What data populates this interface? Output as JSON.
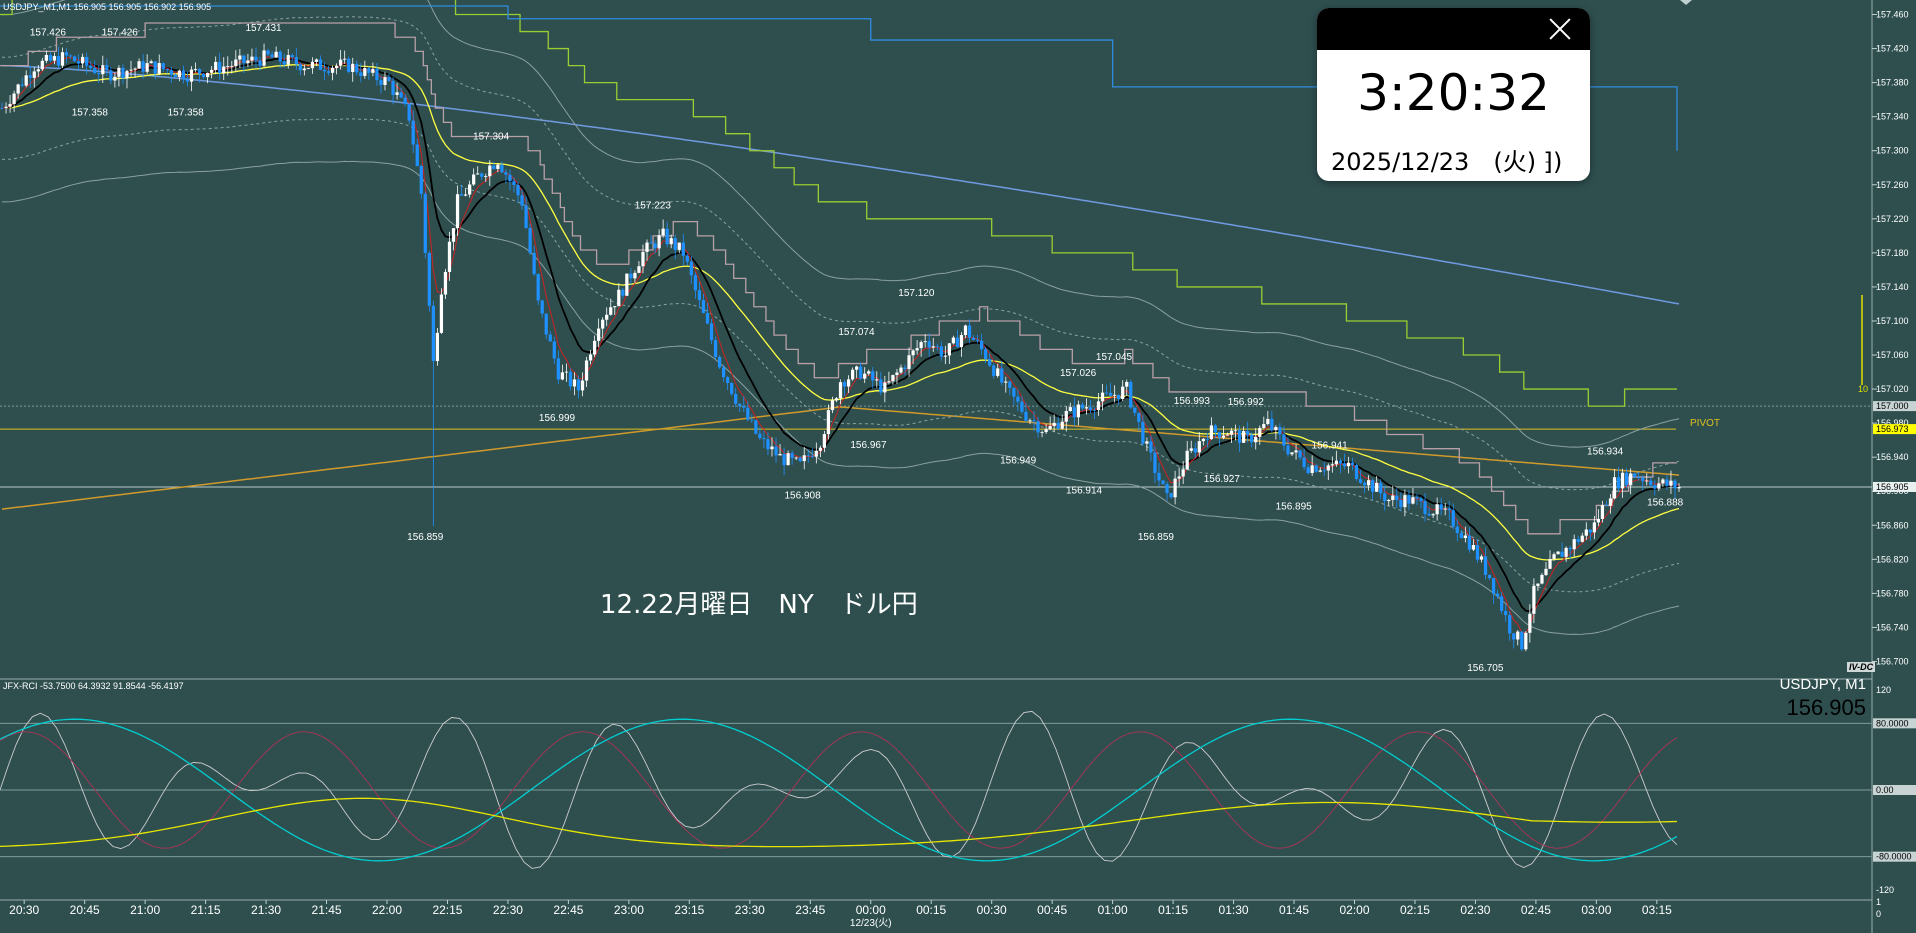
{
  "header": {
    "symbol_info": "USDJPY_M1,M1  156.905 156.905 156.902 156.905"
  },
  "clock": {
    "time": "3:20:32",
    "date": "2025/12/23　(火) ⁆)"
  },
  "annotation": "12.22月曜日　NY　ドル円",
  "rci_panel": {
    "header": "JFX-RCI -53.7500 64.3932 91.8544 -56.4197",
    "symbol": "USDJPY, M1",
    "price": "156.905"
  },
  "brand": "IV-DC",
  "pivot_label": "PIVOT",
  "colors": {
    "background": "#2f4f4f",
    "candle_up": "#ffffff",
    "candle_down": "#1e90ff",
    "ma_black": "#000000",
    "ma_red": "#cc2222",
    "ma_yellow": "#ffff40",
    "trail_green": "#9acd32",
    "trail_blue": "#2f8ce0",
    "ma_long": "#6f9ae0",
    "pivot": "#e0c020",
    "rci_short": "#cccccc",
    "rci_mid": "#00ced1",
    "rci_long": "#e6e600",
    "rci_red": "#aa3355"
  },
  "price_axis": {
    "ticks": [
      "157.460",
      "157.420",
      "157.380",
      "157.340",
      "157.300",
      "157.260",
      "157.220",
      "157.180",
      "157.140",
      "157.100",
      "157.060",
      "157.020",
      "156.980",
      "156.940",
      "156.900",
      "156.860",
      "156.820",
      "156.780",
      "156.740",
      "156.700"
    ],
    "current_price": "156.905",
    "level_157000": "157.000",
    "pivot_value": "156.973",
    "side_mark": "10"
  },
  "rci_axis": {
    "ticks": [
      "120",
      "80.0000",
      "0.00",
      "-80.0000",
      "-120"
    ],
    "bottom_ticks": [
      "1",
      "0"
    ]
  },
  "time_axis": {
    "labels": [
      "20:30",
      "20:45",
      "21:00",
      "21:15",
      "21:30",
      "21:45",
      "22:00",
      "22:15",
      "22:30",
      "22:45",
      "23:00",
      "23:15",
      "23:30",
      "23:45",
      "00:00",
      "00:15",
      "00:30",
      "00:45",
      "01:00",
      "01:15",
      "01:30",
      "01:45",
      "02:00",
      "02:15",
      "02:30",
      "02:45",
      "03:00",
      "03:15"
    ],
    "date_label": "12/23(火)"
  },
  "price_labels": [
    {
      "text": "157.426",
      "value": 157.426,
      "bar": 8,
      "pos": "above"
    },
    {
      "text": "157.426",
      "value": 157.426,
      "bar": 20,
      "pos": "above"
    },
    {
      "text": "157.431",
      "value": 157.431,
      "bar": 44,
      "pos": "above"
    },
    {
      "text": "157.358",
      "value": 157.358,
      "bar": 15,
      "pos": "below"
    },
    {
      "text": "157.358",
      "value": 157.358,
      "bar": 31,
      "pos": "below"
    },
    {
      "text": "157.304",
      "value": 157.304,
      "bar": 82,
      "pos": "above"
    },
    {
      "text": "156.859",
      "value": 156.859,
      "bar": 71,
      "pos": "below"
    },
    {
      "text": "156.999",
      "value": 156.999,
      "bar": 93,
      "pos": "below"
    },
    {
      "text": "157.223",
      "value": 157.223,
      "bar": 109,
      "pos": "above"
    },
    {
      "text": "156.908",
      "value": 156.908,
      "bar": 134,
      "pos": "below"
    },
    {
      "text": "157.074",
      "value": 157.074,
      "bar": 143,
      "pos": "above"
    },
    {
      "text": "156.967",
      "value": 156.967,
      "bar": 145,
      "pos": "below"
    },
    {
      "text": "157.120",
      "value": 157.12,
      "bar": 153,
      "pos": "above"
    },
    {
      "text": "157.026",
      "value": 157.026,
      "bar": 180,
      "pos": "above"
    },
    {
      "text": "156.949",
      "value": 156.949,
      "bar": 170,
      "pos": "below"
    },
    {
      "text": "157.045",
      "value": 157.045,
      "bar": 186,
      "pos": "above"
    },
    {
      "text": "156.914",
      "value": 156.914,
      "bar": 181,
      "pos": "below"
    },
    {
      "text": "156.993",
      "value": 156.993,
      "bar": 199,
      "pos": "above"
    },
    {
      "text": "156.992",
      "value": 156.992,
      "bar": 208,
      "pos": "above"
    },
    {
      "text": "156.859",
      "value": 156.859,
      "bar": 193,
      "pos": "below"
    },
    {
      "text": "156.927",
      "value": 156.927,
      "bar": 204,
      "pos": "below"
    },
    {
      "text": "156.941",
      "value": 156.941,
      "bar": 222,
      "pos": "above"
    },
    {
      "text": "156.895",
      "value": 156.895,
      "bar": 216,
      "pos": "below"
    },
    {
      "text": "156.705",
      "value": 156.705,
      "bar": 248,
      "pos": "below"
    },
    {
      "text": "156.934",
      "value": 156.934,
      "bar": 268,
      "pos": "above"
    },
    {
      "text": "156.888",
      "value": 156.888,
      "bar": 274,
      "pos": "right"
    }
  ],
  "chart_data": {
    "type": "candlestick",
    "title": "USDJPY_M1,M1",
    "timeframe": "M1",
    "x_start": "20:24",
    "x_end": "03:20",
    "ylim": [
      156.69,
      157.47
    ],
    "price_anchor_points": [
      [
        "20:24",
        157.35
      ],
      [
        "20:32",
        157.4
      ],
      [
        "20:40",
        157.41
      ],
      [
        "20:50",
        157.39
      ],
      [
        "21:00",
        157.4
      ],
      [
        "21:10",
        157.39
      ],
      [
        "21:20",
        157.4
      ],
      [
        "21:30",
        157.41
      ],
      [
        "21:40",
        157.4
      ],
      [
        "21:50",
        157.4
      ],
      [
        "22:00",
        157.38
      ],
      [
        "22:05",
        157.34
      ],
      [
        "22:08",
        157.25
      ],
      [
        "22:11",
        157.05
      ],
      [
        "22:13",
        157.14
      ],
      [
        "22:17",
        157.24
      ],
      [
        "22:22",
        157.27
      ],
      [
        "22:27",
        157.29
      ],
      [
        "22:33",
        157.24
      ],
      [
        "22:37",
        157.12
      ],
      [
        "22:42",
        157.04
      ],
      [
        "22:47",
        157.02
      ],
      [
        "22:52",
        157.1
      ],
      [
        "22:57",
        157.13
      ],
      [
        "23:03",
        157.18
      ],
      [
        "23:08",
        157.2
      ],
      [
        "23:13",
        157.18
      ],
      [
        "23:17",
        157.12
      ],
      [
        "23:22",
        157.05
      ],
      [
        "23:27",
        157.0
      ],
      [
        "23:32",
        156.96
      ],
      [
        "23:37",
        156.94
      ],
      [
        "23:42",
        156.93
      ],
      [
        "23:47",
        156.96
      ],
      [
        "23:52",
        157.03
      ],
      [
        "23:57",
        157.04
      ],
      [
        "00:03",
        157.02
      ],
      [
        "00:08",
        157.05
      ],
      [
        "00:13",
        157.08
      ],
      [
        "00:18",
        157.06
      ],
      [
        "00:23",
        157.09
      ],
      [
        "00:28",
        157.06
      ],
      [
        "00:33",
        157.02
      ],
      [
        "00:38",
        156.99
      ],
      [
        "00:43",
        156.97
      ],
      [
        "00:48",
        156.99
      ],
      [
        "00:53",
        157.0
      ],
      [
        "00:58",
        157.01
      ],
      [
        "01:03",
        157.02
      ],
      [
        "01:08",
        156.95
      ],
      [
        "01:13",
        156.89
      ],
      [
        "01:18",
        156.94
      ],
      [
        "01:23",
        156.97
      ],
      [
        "01:28",
        156.97
      ],
      [
        "01:33",
        156.96
      ],
      [
        "01:38",
        156.98
      ],
      [
        "01:43",
        156.95
      ],
      [
        "01:48",
        156.93
      ],
      [
        "01:53",
        156.93
      ],
      [
        "01:58",
        156.93
      ],
      [
        "02:03",
        156.91
      ],
      [
        "02:08",
        156.89
      ],
      [
        "02:13",
        156.89
      ],
      [
        "02:18",
        156.88
      ],
      [
        "02:23",
        156.87
      ],
      [
        "02:28",
        156.84
      ],
      [
        "02:33",
        156.8
      ],
      [
        "02:38",
        156.74
      ],
      [
        "02:41",
        156.72
      ],
      [
        "02:44",
        156.78
      ],
      [
        "02:49",
        156.82
      ],
      [
        "02:54",
        156.84
      ],
      [
        "02:59",
        156.86
      ],
      [
        "03:04",
        156.91
      ],
      [
        "03:09",
        156.92
      ],
      [
        "03:14",
        156.91
      ],
      [
        "03:20",
        156.905
      ]
    ],
    "lines": {
      "pivot": 156.973,
      "level": 157.0,
      "current": 156.905
    },
    "rci": {
      "ylim": [
        -120,
        120
      ],
      "levels": [
        80,
        0,
        -80
      ],
      "short": -53.75,
      "mid": 91.8544,
      "long": -56.4197,
      "other": 64.3932
    }
  }
}
